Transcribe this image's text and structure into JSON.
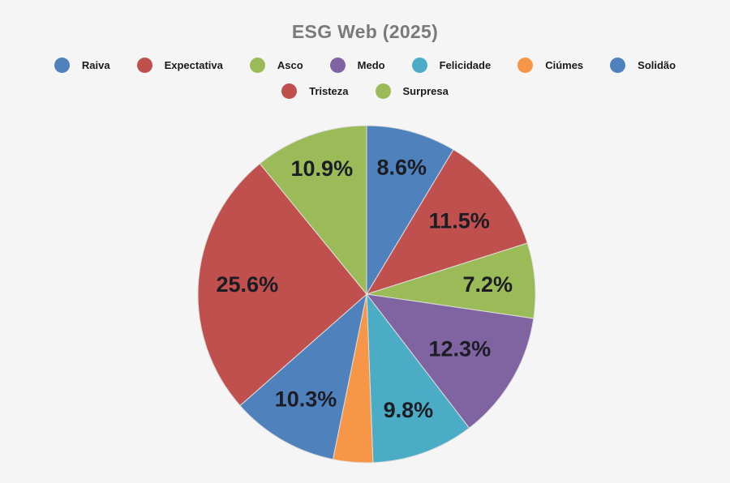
{
  "chart_data": {
    "type": "pie",
    "title": "ESG Web (2025)",
    "title_color": "#7a7a7a",
    "data_label_color": "#1c1c24",
    "legend_text_color": "#1a1a1a",
    "background_color": "#f5f5f6",
    "start_angle": "12-oclock",
    "direction": "clockwise",
    "legend_position": "top",
    "legend_rows": [
      7,
      2
    ],
    "slices": [
      {
        "label": "Raiva",
        "value": 8.6,
        "data_label": "8.6%",
        "color": "#4F81BD"
      },
      {
        "label": "Expectativa",
        "value": 11.5,
        "data_label": "11.5%",
        "color": "#C0504D"
      },
      {
        "label": "Asco",
        "value": 7.2,
        "data_label": "7.2%",
        "color": "#9BBB59"
      },
      {
        "label": "Medo",
        "value": 12.3,
        "data_label": "12.3%",
        "color": "#8064A2"
      },
      {
        "label": "Felicidade",
        "value": 9.8,
        "data_label": "9.8%",
        "color": "#4BACC6"
      },
      {
        "label": "Ciúmes",
        "value": 3.8,
        "data_label": "",
        "color": "#F79646"
      },
      {
        "label": "Solidão",
        "value": 10.3,
        "data_label": "10.3%",
        "color": "#4F81BD"
      },
      {
        "label": "Tristeza",
        "value": 25.6,
        "data_label": "25.6%",
        "color": "#C0504D"
      },
      {
        "label": "Surpresa",
        "value": 10.9,
        "data_label": "10.9%",
        "color": "#9BBB59"
      }
    ]
  }
}
